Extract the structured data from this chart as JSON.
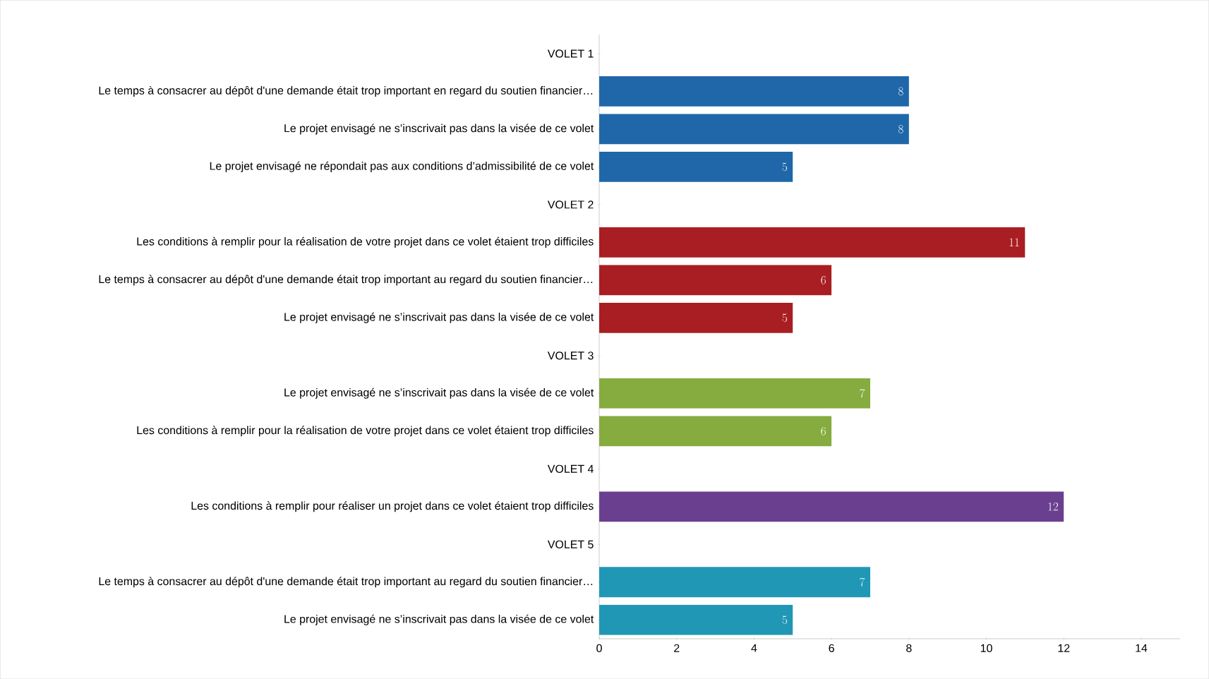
{
  "chart_data": {
    "type": "bar",
    "orientation": "horizontal",
    "categories": [
      "VOLET 1",
      "Le temps à consacrer au dépôt d'une demande était trop important en regard du soutien financier…",
      "Le projet envisagé ne s’inscrivait pas dans la visée de ce volet",
      "Le projet envisagé ne répondait pas aux conditions d’admissibilité de ce volet",
      "VOLET 2",
      "Les conditions à remplir pour la réalisation de votre projet dans ce volet étaient trop difficiles",
      "Le temps à consacrer au dépôt d'une demande était trop important au regard du soutien financier…",
      "Le projet envisagé ne s’inscrivait pas dans la visée de ce volet",
      "VOLET 3",
      "Le projet envisagé ne s’inscrivait pas dans la visée de ce volet",
      "Les conditions à remplir pour la réalisation de votre projet dans ce volet étaient trop difficiles",
      "VOLET 4",
      "Les conditions à remplir pour réaliser un projet dans ce volet étaient trop difficiles",
      "VOLET 5",
      "Le temps à consacrer au dépôt d'une demande était trop important au regard du soutien financier…",
      "Le projet envisagé ne s’inscrivait pas dans la visée de ce volet"
    ],
    "values": [
      null,
      8,
      8,
      5,
      null,
      11,
      6,
      5,
      null,
      7,
      6,
      null,
      12,
      null,
      7,
      5
    ],
    "colors": [
      null,
      "#1f67a9",
      "#1f67a9",
      "#1f67a9",
      null,
      "#a91e22",
      "#a91e22",
      "#a91e22",
      null,
      "#86ac3f",
      "#86ac3f",
      null,
      "#6a3f8f",
      null,
      "#2197b6",
      "#2197b6"
    ],
    "xlim": [
      0,
      15
    ],
    "xticks": [
      0,
      2,
      4,
      6,
      8,
      10,
      12,
      14
    ],
    "data_labels": true
  }
}
